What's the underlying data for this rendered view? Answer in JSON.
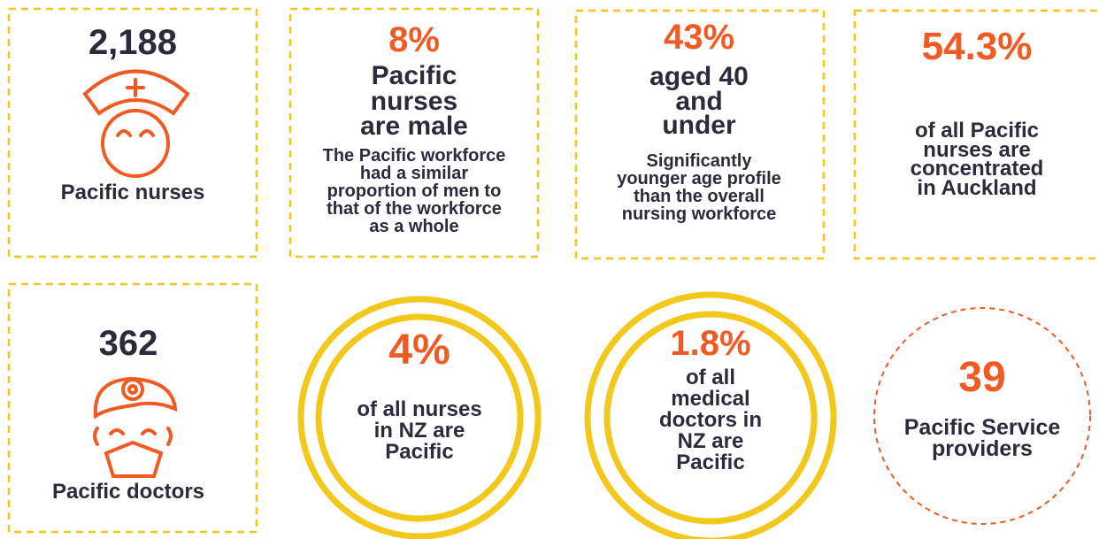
{
  "cards": [
    {
      "stat": "2,188",
      "label": [
        "Pacific nurses"
      ]
    },
    {
      "stat": "8%",
      "heading": [
        "Pacific",
        "nurses",
        "are male"
      ],
      "text": [
        "The Pacific workforce",
        "had a similar",
        "proportion of men to",
        "that of the workforce",
        "as a whole"
      ]
    },
    {
      "stat": "43%",
      "heading": [
        "aged 40",
        "and",
        "under"
      ],
      "text": [
        "Significantly",
        "younger age profile",
        "than the overall",
        "nursing workforce"
      ]
    },
    {
      "stat": "54.3%",
      "text": [
        "of all Pacific",
        "nurses are",
        "concentrated",
        "in Auckland"
      ]
    },
    {
      "stat": "362",
      "label": [
        "Pacific doctors"
      ]
    },
    {
      "stat": "4%",
      "text": [
        "of all nurses",
        "in NZ are",
        "Pacific"
      ]
    },
    {
      "stat": "1.8%",
      "text": [
        "of all",
        "medical",
        "doctors in",
        "NZ are",
        "Pacific"
      ]
    },
    {
      "stat": "39",
      "text": [
        "Pacific Service",
        "providers"
      ]
    }
  ]
}
